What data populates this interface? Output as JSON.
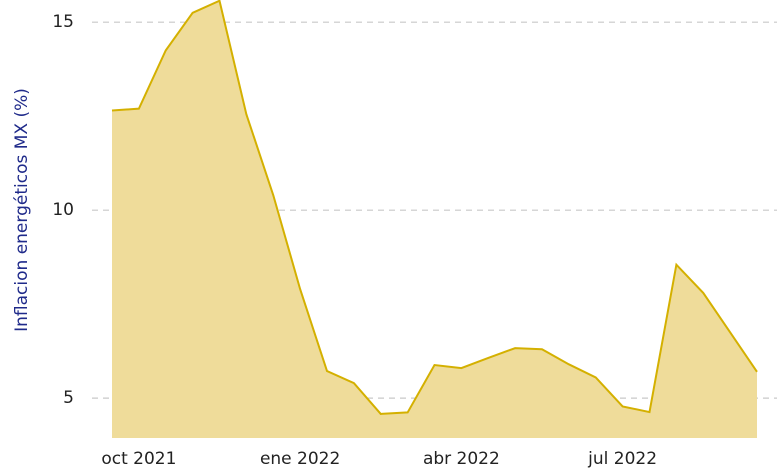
{
  "chart_data": {
    "type": "area",
    "ylabel": "Inflacion energéticos MX (%)",
    "categories": [
      null,
      "oct 2021",
      null,
      null,
      null,
      null,
      null,
      "ene 2022",
      null,
      null,
      null,
      null,
      null,
      "abr 2022",
      null,
      null,
      null,
      null,
      null,
      "jul 2022",
      null,
      null,
      null,
      null,
      null
    ],
    "series": [
      {
        "name": "Inflacion energéticos MX",
        "color": "#d4b000",
        "fill": "#efdc9a",
        "values": [
          12.65,
          12.7,
          14.25,
          15.25,
          15.57,
          12.55,
          10.4,
          7.9,
          5.72,
          5.4,
          4.58,
          4.62,
          5.88,
          5.8,
          6.07,
          6.33,
          6.3,
          5.9,
          5.55,
          4.78,
          4.63,
          8.55,
          7.8,
          6.75,
          5.7
        ]
      }
    ],
    "ylim": [
      3.94,
      15.59
    ],
    "yticks": [
      5,
      10,
      15
    ],
    "grid": true
  }
}
